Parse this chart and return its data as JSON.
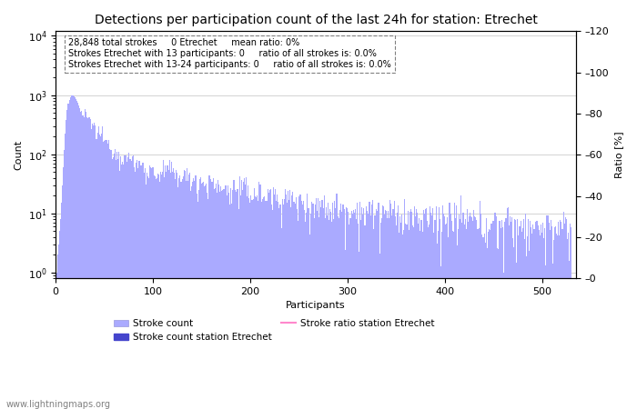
{
  "title": "Detections per participation count of the last 24h for station: Etrechet",
  "xlabel": "Participants",
  "ylabel_left": "Count",
  "ylabel_right": "Ratio [%]",
  "annotation_lines": [
    "28,848 total strokes     0 Etrechet     mean ratio: 0%",
    "Strokes Etrechet with 13 participants: 0     ratio of all strokes is: 0.0%",
    "Strokes Etrechet with 13-24 participants: 0     ratio of all strokes is: 0.0%"
  ],
  "watermark": "www.lightningmaps.org",
  "bar_color": "#aaaaff",
  "station_bar_color": "#4444cc",
  "ratio_line_color": "#ff88cc",
  "xlim": [
    0,
    535
  ],
  "ylim_ratio": [
    0,
    120
  ],
  "legend_labels": [
    "Stroke count",
    "Stroke count station Etrechet",
    "Stroke ratio station Etrechet"
  ],
  "title_fontsize": 10,
  "axis_fontsize": 8,
  "annotation_fontsize": 7,
  "tick_fontsize": 8
}
